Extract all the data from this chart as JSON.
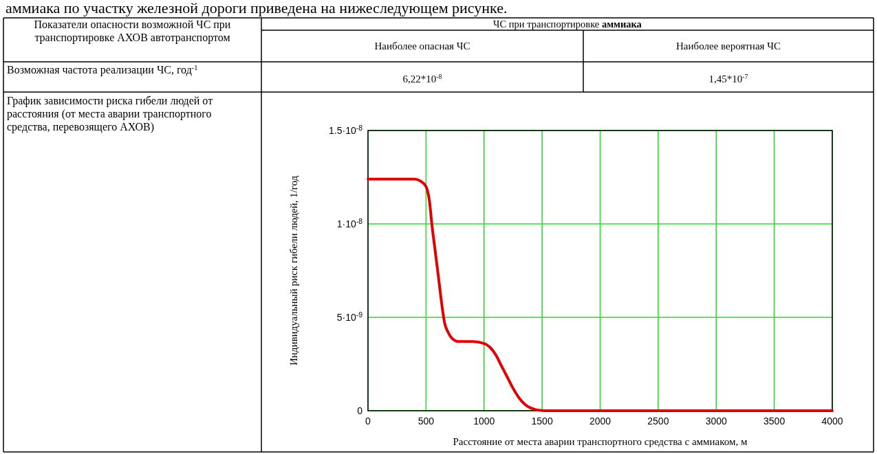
{
  "chart_data": {
    "type": "line",
    "xlabel": "Расстояние от места аварии транспортного средства с   аммиаком, м",
    "ylabel": "Индивидуальный риск гибели людей, 1/год",
    "xlim": [
      0,
      4000
    ],
    "ylim": [
      0,
      1.5e-08
    ],
    "xticks": [
      0,
      500,
      1000,
      1500,
      2000,
      2500,
      3000,
      3500,
      4000
    ],
    "yticks": [
      {
        "value": 0,
        "label": "0"
      },
      {
        "value": 5e-09,
        "label": "5·10$^{-9}$"
      },
      {
        "value": 1e-08,
        "label": "1·10$^{-8}$"
      },
      {
        "value": 1.5e-08,
        "label": "1.5·10$^{-8}$"
      }
    ],
    "grid": true,
    "x": [
      0,
      200,
      400,
      450,
      500,
      530,
      550,
      580,
      610,
      640,
      660,
      690,
      720,
      780,
      900,
      1000,
      1050,
      1100,
      1150,
      1200,
      1250,
      1300,
      1350,
      1400,
      1450,
      1500,
      1550,
      2000,
      3000,
      4000
    ],
    "series": [
      {
        "color": "#e00000",
        "values": [
          1.24e-08,
          1.24e-08,
          1.24e-08,
          1.23e-08,
          1.2e-08,
          1.12e-08,
          1e-08,
          8.5e-09,
          7e-09,
          5.5e-09,
          4.7e-09,
          4.2e-09,
          3.9e-09,
          3.7e-09,
          3.7e-09,
          3.6e-09,
          3.4e-09,
          3e-09,
          2.4e-09,
          1.8e-09,
          1.2e-09,
          7e-10,
          3.5e-10,
          1.5e-10,
          5e-11,
          1e-11,
          0,
          0,
          0,
          0
        ]
      }
    ],
    "annotations": [
      "аммиака по участку железной дороги приведена на нижеследующем рисунке.",
      "Показатели опасности возможной ЧС при транспортировке АХОВ автотранспортом",
      "ЧС при транспортировке аммиака",
      "Наиболее опасная ЧС",
      "Наиболее вероятная ЧС",
      "Возможная частота реализации ЧС, год$^{-1}$",
      "6,22*10$^{-8}$",
      "1,45*10$^{-7}$",
      "График зависимости риска гибели людей от расстояния (от места аварии транспортного средства, перевозящего АХОВ)"
    ]
  }
}
